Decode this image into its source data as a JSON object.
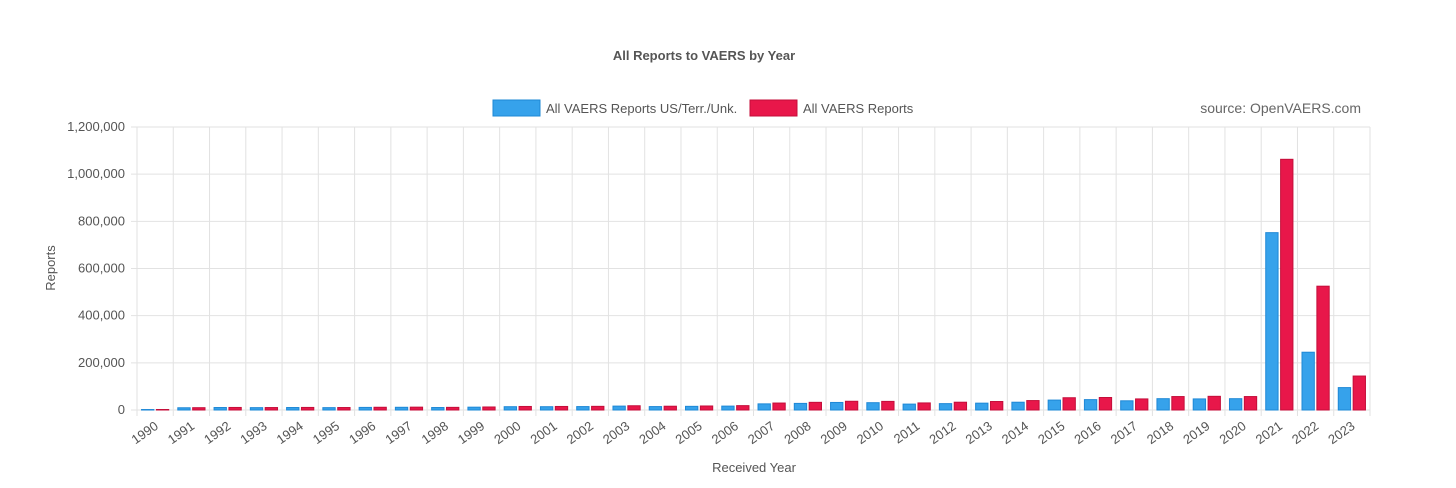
{
  "chart_data": {
    "type": "bar",
    "title": "All Reports to VAERS by Year",
    "source": "source: OpenVAERS.com",
    "xlabel": "Received Year",
    "ylabel": "Reports",
    "ylim": [
      0,
      1200000
    ],
    "yticks": [
      0,
      200000,
      400000,
      600000,
      800000,
      1000000,
      1200000
    ],
    "ytick_labels": [
      "0",
      "200,000",
      "400,000",
      "600,000",
      "800,000",
      "1,000,000",
      "1,200,000"
    ],
    "grid": true,
    "legend_position": "top-center",
    "categories": [
      "1990",
      "1991",
      "1992",
      "1993",
      "1994",
      "1995",
      "1996",
      "1997",
      "1998",
      "1999",
      "2000",
      "2001",
      "2002",
      "2003",
      "2004",
      "2005",
      "2006",
      "2007",
      "2008",
      "2009",
      "2010",
      "2011",
      "2012",
      "2013",
      "2014",
      "2015",
      "2016",
      "2017",
      "2018",
      "2019",
      "2020",
      "2021",
      "2022",
      "2023"
    ],
    "series": [
      {
        "name": "All VAERS Reports US/Terr./Unk.",
        "color": "#36a2eb",
        "border": "#1e88d6",
        "values": [
          2000,
          9500,
          10500,
          10000,
          10500,
          10000,
          11000,
          11500,
          10500,
          12000,
          14000,
          14000,
          14500,
          16500,
          14500,
          15500,
          16500,
          26000,
          28000,
          32000,
          31000,
          25000,
          27000,
          29000,
          33000,
          42000,
          44000,
          39000,
          48000,
          47000,
          48000,
          752000,
          245000,
          95000
        ]
      },
      {
        "name": "All VAERS Reports",
        "color": "#e8174a",
        "border": "#c40e3a",
        "values": [
          2100,
          9800,
          10800,
          10400,
          10900,
          10500,
          11600,
          12100,
          11200,
          12800,
          15000,
          15000,
          15500,
          18000,
          16000,
          17000,
          18500,
          29500,
          32500,
          37000,
          36500,
          30000,
          33000,
          36000,
          40000,
          52000,
          53000,
          47000,
          57000,
          58000,
          57000,
          1063000,
          525000,
          144000
        ]
      }
    ]
  }
}
